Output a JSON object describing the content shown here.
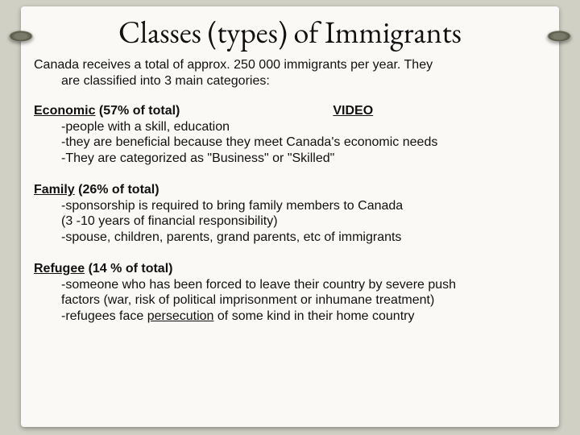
{
  "slide": {
    "title": "Classes (types) of Immigrants",
    "intro_line1": "Canada receives a total of approx. 250 000 immigrants per year.  They",
    "intro_line2": "are classified into 3 main categories:",
    "video_label": "VIDEO",
    "sections": {
      "economic": {
        "heading_underlined": "Economic",
        "heading_rest": "  (57% of total)",
        "bullets": [
          "-people with a skill, education",
          "-they are beneficial because they meet Canada's economic needs",
          "-They are categorized as \"Business\" or \"Skilled\""
        ]
      },
      "family": {
        "heading_underlined": "Family",
        "heading_rest": " (26% of total)",
        "bullets": [
          "-sponsorship is required to bring family members to Canada",
          "(3 -10 years of financial responsibility)",
          "-spouse, children, parents, grand parents, etc of immigrants"
        ]
      },
      "refugee": {
        "heading_underlined": "Refugee",
        "heading_rest": " (14 % of total)",
        "bullets_b1": "-someone who has been forced to leave their country by severe push",
        "bullets_b2": "factors (war, risk of political imprisonment or inhumane treatment)",
        "bullets_b3_pre": "-refugees face ",
        "bullets_b3_under": "persecution",
        "bullets_b3_post": " of some kind in their home country"
      }
    }
  },
  "style": {
    "page_bg": "#faf9f6",
    "outer_bg": "#d0d0c4",
    "text_color": "#111111",
    "title_fontsize_pt": 28,
    "body_fontsize_pt": 12,
    "title_font": "Garamond, Georgia, serif",
    "body_font": "Arial, Helvetica, sans-serif"
  }
}
